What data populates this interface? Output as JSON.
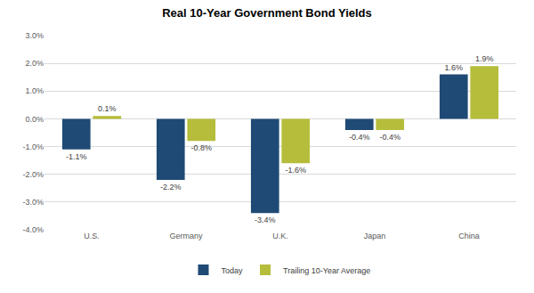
{
  "chart_data": {
    "type": "bar",
    "title": "Real 10-Year Government Bond Yields",
    "categories": [
      "U.S.",
      "Germany",
      "U.K.",
      "Japan",
      "China"
    ],
    "series": [
      {
        "name": "Today",
        "color": "#1f4a75",
        "values": [
          -1.1,
          -2.2,
          -3.4,
          -0.4,
          1.6
        ],
        "value_labels": [
          "-1.1%",
          "-2.2%",
          "-3.4%",
          "-0.4%",
          "1.6%"
        ]
      },
      {
        "name": "Trailing 10-Year Average",
        "color": "#b5bd3b",
        "values": [
          0.1,
          -0.8,
          -1.6,
          -0.4,
          1.9
        ],
        "value_labels": [
          "0.1%",
          "-0.8%",
          "-1.6%",
          "-0.4%",
          "1.9%"
        ]
      }
    ],
    "ylim": [
      -4,
      3
    ],
    "yticks": [
      {
        "value": -4,
        "label": "-4.0%"
      },
      {
        "value": -3,
        "label": "-3.0%"
      },
      {
        "value": -2,
        "label": "-2.0%"
      },
      {
        "value": -1,
        "label": "-1.0%"
      },
      {
        "value": 0,
        "label": "0.0%"
      },
      {
        "value": 1,
        "label": "1.0%"
      },
      {
        "value": 2,
        "label": "2.0%"
      },
      {
        "value": 3,
        "label": "3.0%"
      }
    ],
    "grid": true,
    "legend": "bottom",
    "data_labels": true
  }
}
